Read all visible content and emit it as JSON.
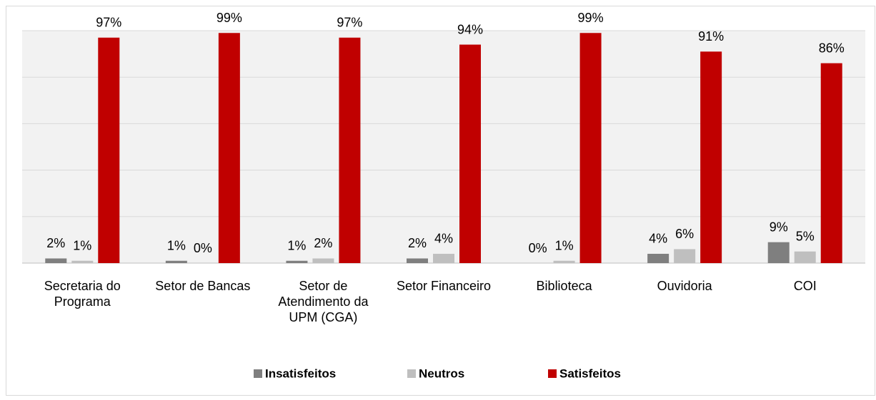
{
  "chart_data": {
    "type": "bar",
    "categories": [
      "Secretaria do\nPrograma",
      "Setor de Bancas",
      "Setor de\nAtendimento da\nUPM (CGA)",
      "Setor Financeiro",
      "Biblioteca",
      "Ouvidoria",
      "COI"
    ],
    "series": [
      {
        "name": "Insatisfeitos",
        "color": "#7f7f7f",
        "values": [
          2,
          1,
          1,
          2,
          0,
          4,
          9
        ],
        "value_labels": [
          "2%",
          "1%",
          "1%",
          "2%",
          "0%",
          "4%",
          "9%"
        ]
      },
      {
        "name": "Neutros",
        "color": "#bfbfbf",
        "values": [
          1,
          0,
          2,
          4,
          1,
          6,
          5
        ],
        "value_labels": [
          "1%",
          "0%",
          "2%",
          "4%",
          "1%",
          "6%",
          "5%"
        ]
      },
      {
        "name": "Satisfeitos",
        "color": "#c00000",
        "values": [
          97,
          99,
          97,
          94,
          99,
          91,
          86
        ],
        "value_labels": [
          "97%",
          "99%",
          "97%",
          "94%",
          "99%",
          "91%",
          "86%"
        ]
      }
    ],
    "ylim": [
      0,
      100
    ],
    "yticks": [
      0,
      20,
      40,
      60,
      80,
      100
    ],
    "grid": true,
    "legend": "bottom"
  }
}
